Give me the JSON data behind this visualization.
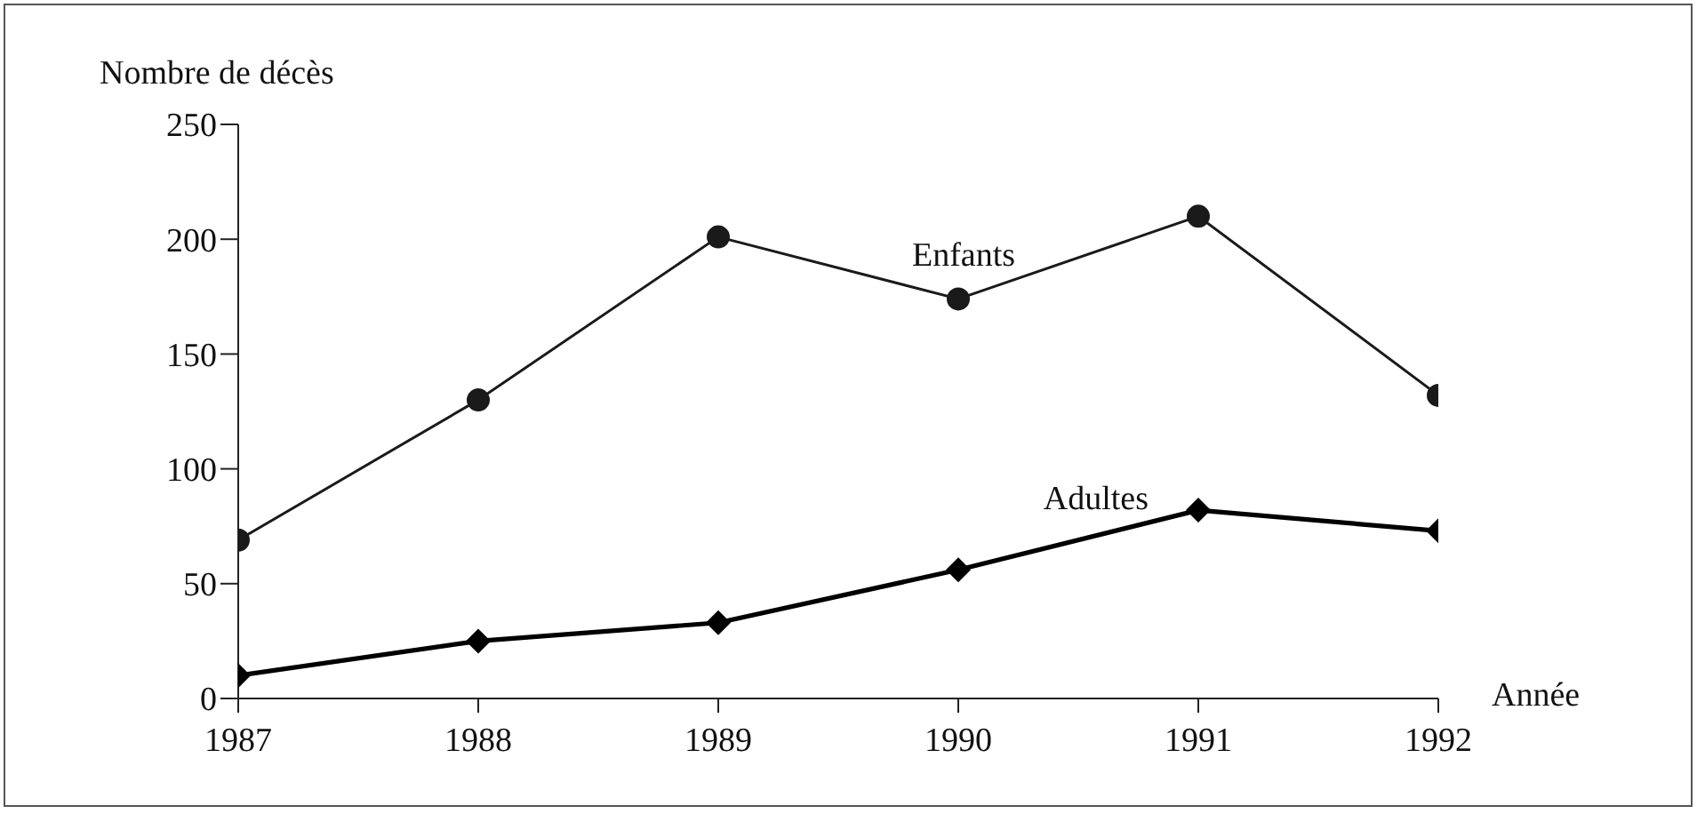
{
  "chart_data": {
    "type": "line",
    "xlabel": "Année",
    "ylabel": "Nombre de décès",
    "x": [
      1987,
      1988,
      1989,
      1990,
      1991,
      1992
    ],
    "xlim": [
      1987,
      1992
    ],
    "xticks": [
      1987,
      1988,
      1989,
      1990,
      1991,
      1992
    ],
    "ylim": [
      0,
      250
    ],
    "yticks": [
      0,
      50,
      100,
      150,
      200,
      250
    ],
    "series": [
      {
        "name": "Enfants",
        "color": "#1a1a1a",
        "marker": "circle",
        "values": [
          69,
          130,
          201,
          174,
          210,
          132
        ]
      },
      {
        "name": "Adultes",
        "color": "#000000",
        "marker": "diamond",
        "values": [
          10,
          25,
          33,
          56,
          82,
          73
        ]
      }
    ]
  }
}
